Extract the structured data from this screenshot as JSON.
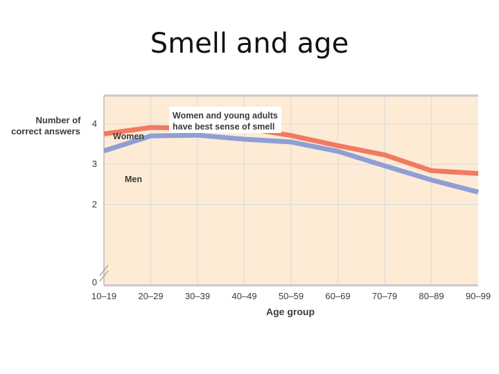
{
  "slide": {
    "title": "Smell and age"
  },
  "chart_data": {
    "type": "line",
    "title": "",
    "annotation": [
      "Women and young adults",
      "have best sense of smell"
    ],
    "xlabel": "Age group",
    "ylabel": [
      "Number of",
      "correct answers"
    ],
    "categories": [
      "10–19",
      "20–29",
      "30–39",
      "40–49",
      "50–59",
      "60–69",
      "70–79",
      "80–89",
      "90–99"
    ],
    "ylim": [
      0,
      4.7
    ],
    "yticks": [
      0,
      2,
      3,
      4
    ],
    "axis_break": true,
    "grid": true,
    "series": [
      {
        "name": "Women",
        "color": "#f07b62",
        "values": [
          3.75,
          3.91,
          3.89,
          3.9,
          3.71,
          3.46,
          3.23,
          2.84,
          2.77
        ]
      },
      {
        "name": "Men",
        "color": "#8f9fd6",
        "values": [
          3.33,
          3.7,
          3.72,
          3.62,
          3.55,
          3.32,
          2.96,
          2.61,
          2.31
        ]
      }
    ],
    "colors": {
      "plot_background": "#fdebd6",
      "grid": "#dddddd"
    }
  }
}
